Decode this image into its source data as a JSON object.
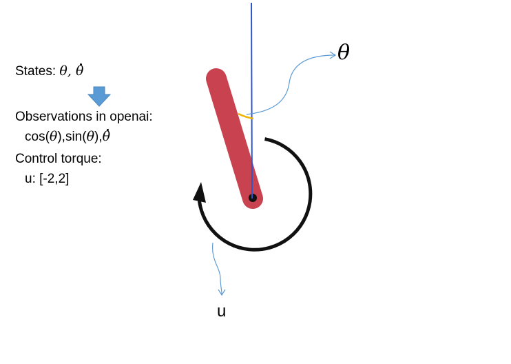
{
  "colors": {
    "pendulum": "#c8434f",
    "axis_line": "#2f56c9",
    "annotation": "#5b9bd5",
    "angle_mark": "#f0b400",
    "arrow_fill": "#5b9bd5",
    "torque_arc": "#111111"
  },
  "left_panel": {
    "states_label": "States: ",
    "states_vars": "θ, θ",
    "down_arrow_icon": "down-arrow-icon",
    "observations_title": "Observations in openai:",
    "observations_values": "cos(θ),sin(θ),θ",
    "control_title": "Control torque:",
    "control_range": "u: [-2,2]"
  },
  "labels": {
    "theta": "θ",
    "u": "u"
  }
}
